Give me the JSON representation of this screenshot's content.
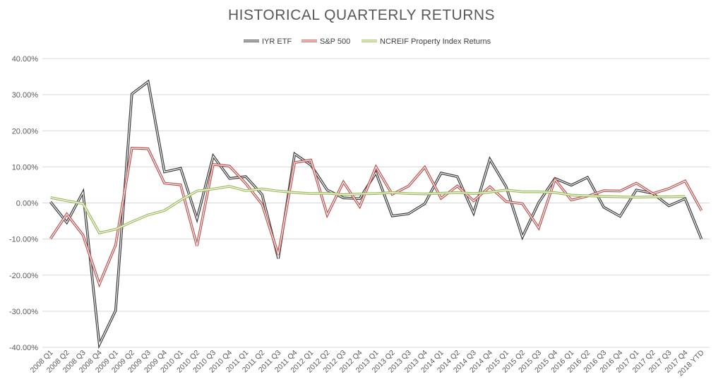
{
  "chart_data": {
    "type": "line",
    "title": "HISTORICAL QUARTERLY RETURNS",
    "categories": [
      "2008 Q1",
      "2008 Q2",
      "2008 Q3",
      "2008 Q4",
      "2009 Q1",
      "2009 Q2",
      "2009 Q3",
      "2009 Q4",
      "2010 Q1",
      "2010 Q2",
      "2010 Q3",
      "2010 Q4",
      "2011 Q1",
      "2011 Q2",
      "2011 Q3",
      "2011 Q4",
      "2012 Q1",
      "2012 Q2",
      "2012 Q3",
      "2012 Q4",
      "2013 Q1",
      "2013 Q2",
      "2013 Q3",
      "2013 Q4",
      "2014 Q1",
      "2014 Q2",
      "2014 Q3",
      "2014 Q4",
      "2015 Q1",
      "2015 Q2",
      "2015 Q3",
      "2015 Q4",
      "2016 Q1",
      "2016 Q2",
      "2016 Q3",
      "2016 Q4",
      "2017 Q1",
      "2017 Q2",
      "2017 Q3",
      "2017 Q4",
      "2018 YTD"
    ],
    "yticks": [
      "40.00%",
      "30.00%",
      "20.00%",
      "10.00%",
      "0.00%",
      "-10.00%",
      "-20.00%",
      "-30.00%",
      "-40.00%"
    ],
    "ylim": [
      -40,
      40
    ],
    "legend_position": "top",
    "grid": "horizontal",
    "series": [
      {
        "name": "IYR ETF",
        "color": "#3a3a3a",
        "values": [
          0.3,
          -5.4,
          3.0,
          -39.2,
          -29.8,
          30.2,
          33.6,
          8.6,
          9.6,
          -4.4,
          13.0,
          6.8,
          7.3,
          2.3,
          -15.4,
          13.6,
          10.5,
          3.6,
          1.4,
          1.2,
          8.4,
          -3.6,
          -3.0,
          -0.2,
          8.3,
          7.3,
          -2.8,
          12.1,
          4.5,
          -9.4,
          0.1,
          6.8,
          4.9,
          7.1,
          -1.2,
          -3.7,
          3.6,
          2.7,
          -0.8,
          1.2,
          -10.0
        ]
      },
      {
        "name": "S&P 500",
        "color": "#c0504d",
        "values": [
          -9.9,
          -3.1,
          -8.9,
          -22.5,
          -11.7,
          15.2,
          15.0,
          5.5,
          5.0,
          -11.9,
          10.7,
          10.2,
          5.4,
          -0.4,
          -14.3,
          11.2,
          11.9,
          -3.3,
          5.8,
          -1.0,
          10.0,
          2.4,
          4.7,
          9.9,
          1.3,
          4.7,
          0.6,
          4.5,
          0.4,
          -0.2,
          -6.9,
          6.5,
          0.8,
          1.9,
          3.4,
          3.3,
          5.5,
          2.6,
          4.0,
          6.1,
          -2.1
        ]
      },
      {
        "name": "NCREIF Property Index Returns",
        "color": "#9bbb59",
        "values": [
          1.5,
          0.6,
          -0.2,
          -8.3,
          -7.3,
          -5.2,
          -3.3,
          -2.1,
          0.8,
          3.3,
          3.9,
          4.6,
          3.4,
          3.9,
          3.3,
          2.9,
          2.6,
          2.7,
          2.3,
          2.5,
          2.6,
          2.9,
          2.6,
          2.5,
          2.7,
          2.9,
          2.6,
          3.0,
          3.6,
          3.1,
          3.1,
          2.9,
          2.2,
          2.0,
          1.8,
          1.7,
          1.6,
          1.7,
          1.7,
          1.8,
          null
        ]
      }
    ]
  }
}
